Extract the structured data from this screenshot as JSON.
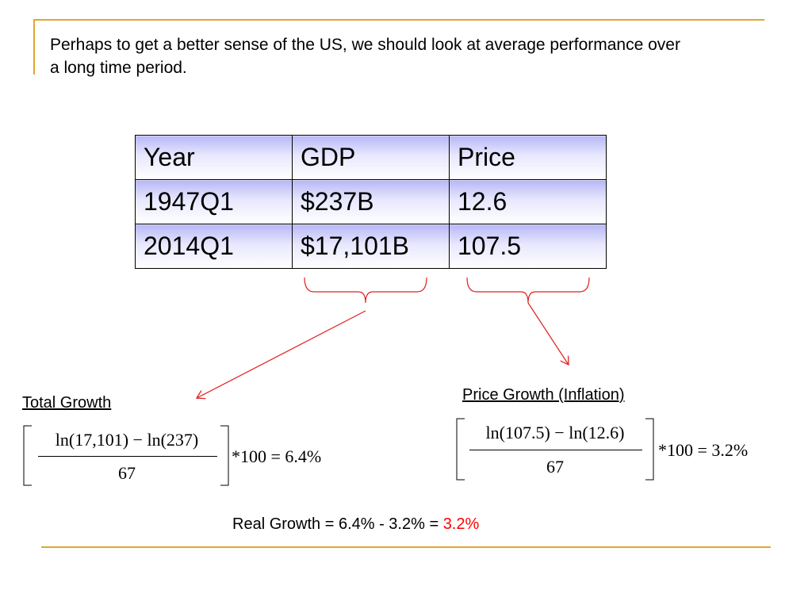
{
  "intro": "Perhaps to get a better sense of the US, we should look at average performance over a long time period.",
  "table": {
    "headers": [
      "Year",
      "GDP",
      "Price"
    ],
    "rows": [
      [
        "1947Q1",
        "$237B",
        "12.6"
      ],
      [
        "2014Q1",
        "$17,101B",
        "107.5"
      ]
    ]
  },
  "total_growth": {
    "label": "Total Growth",
    "numerator": "ln(17,101) − ln(237)",
    "denominator": "67",
    "result": "*100 = 6.4%"
  },
  "price_growth": {
    "label": "Price Growth (Inflation)",
    "numerator": "ln(107.5) − ln(12.6)",
    "denominator": "67",
    "result": "*100 = 3.2%"
  },
  "real_growth": {
    "text": "Real Growth = 6.4% - 3.2% = ",
    "value": "3.2%"
  },
  "colors": {
    "accent_rule": "#e0a830",
    "arrow": "#e02020",
    "highlight": "#ff0000",
    "table_header_gradient_top": "#b7b7f7"
  }
}
